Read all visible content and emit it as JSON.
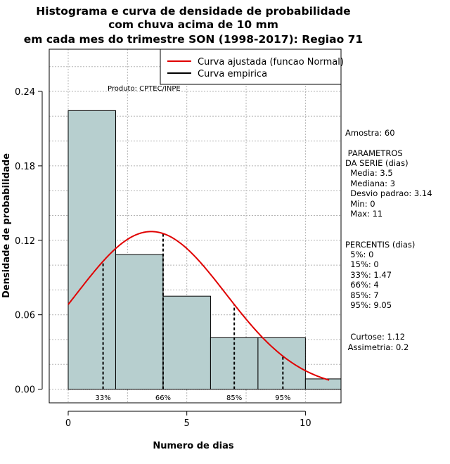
{
  "chart_data": {
    "type": "bar",
    "title": [
      "Histograma e curva de densidade de probabilidade",
      "com chuva acima de 10 mm",
      "em cada mes do trimestre SON (1998-2017): Regiao 71"
    ],
    "xlabel": "Numero de dias",
    "ylabel": "Densidade de probabilidade",
    "xlim": [
      -0.8,
      11.5
    ],
    "ylim": [
      -0.011,
      0.274
    ],
    "x_ticks": [
      0,
      5,
      10
    ],
    "y_ticks": [
      0.0,
      0.06,
      0.12,
      0.18,
      0.24
    ],
    "y_tick_labels": [
      "0.00",
      "0.06",
      "0.12",
      "0.18",
      "0.24"
    ],
    "grid": true,
    "bins": [
      {
        "x0": 0,
        "x1": 2,
        "value": 0.2245
      },
      {
        "x0": 2,
        "x1": 4,
        "value": 0.1085
      },
      {
        "x0": 4,
        "x1": 6,
        "value": 0.075
      },
      {
        "x0": 6,
        "x1": 8,
        "value": 0.0415
      },
      {
        "x0": 8,
        "x1": 10,
        "value": 0.0415
      },
      {
        "x0": 10,
        "x1": 11.5,
        "value": 0.0083
      }
    ],
    "fitted_curve": {
      "name": "Curva ajustada (funcao Normal)",
      "mean": 3.5,
      "sd": 3.14,
      "x_range": [
        0,
        11
      ],
      "color": "#e00000"
    },
    "empirical_curve": {
      "name": "Curva empirica",
      "color": "#000000"
    },
    "percentile_lines": [
      {
        "x": 1.47,
        "label": "33%"
      },
      {
        "x": 4,
        "label": "66%"
      },
      {
        "x": 7,
        "label": "85%"
      },
      {
        "x": 9.05,
        "label": "95%"
      }
    ],
    "legend_position": "top-right",
    "bar_color": "#b7cfcf",
    "product_label": "Produto: CPTEC/INPE"
  },
  "stats": {
    "amostra": "Amostra: 60",
    "params_title_1": " PARAMETROS",
    "params_title_2": "DA SERIE (dias)",
    "media": "  Media: 3.5",
    "mediana": "  Mediana: 3",
    "desvio": "  Desvio padrao: 3.14",
    "min": "  Min: 0",
    "max": "  Max: 11",
    "percentis_title": "PERCENTIS (dias)",
    "p5": "  5%: 0",
    "p15": "  15%: 0",
    "p33": "  33%: 1.47",
    "p66": "  66%: 4",
    "p85": "  85%: 7",
    "p95": "  95%: 9.05",
    "curtose": "  Curtose: 1.12",
    "assimetria": " Assimetria: 0.2"
  }
}
